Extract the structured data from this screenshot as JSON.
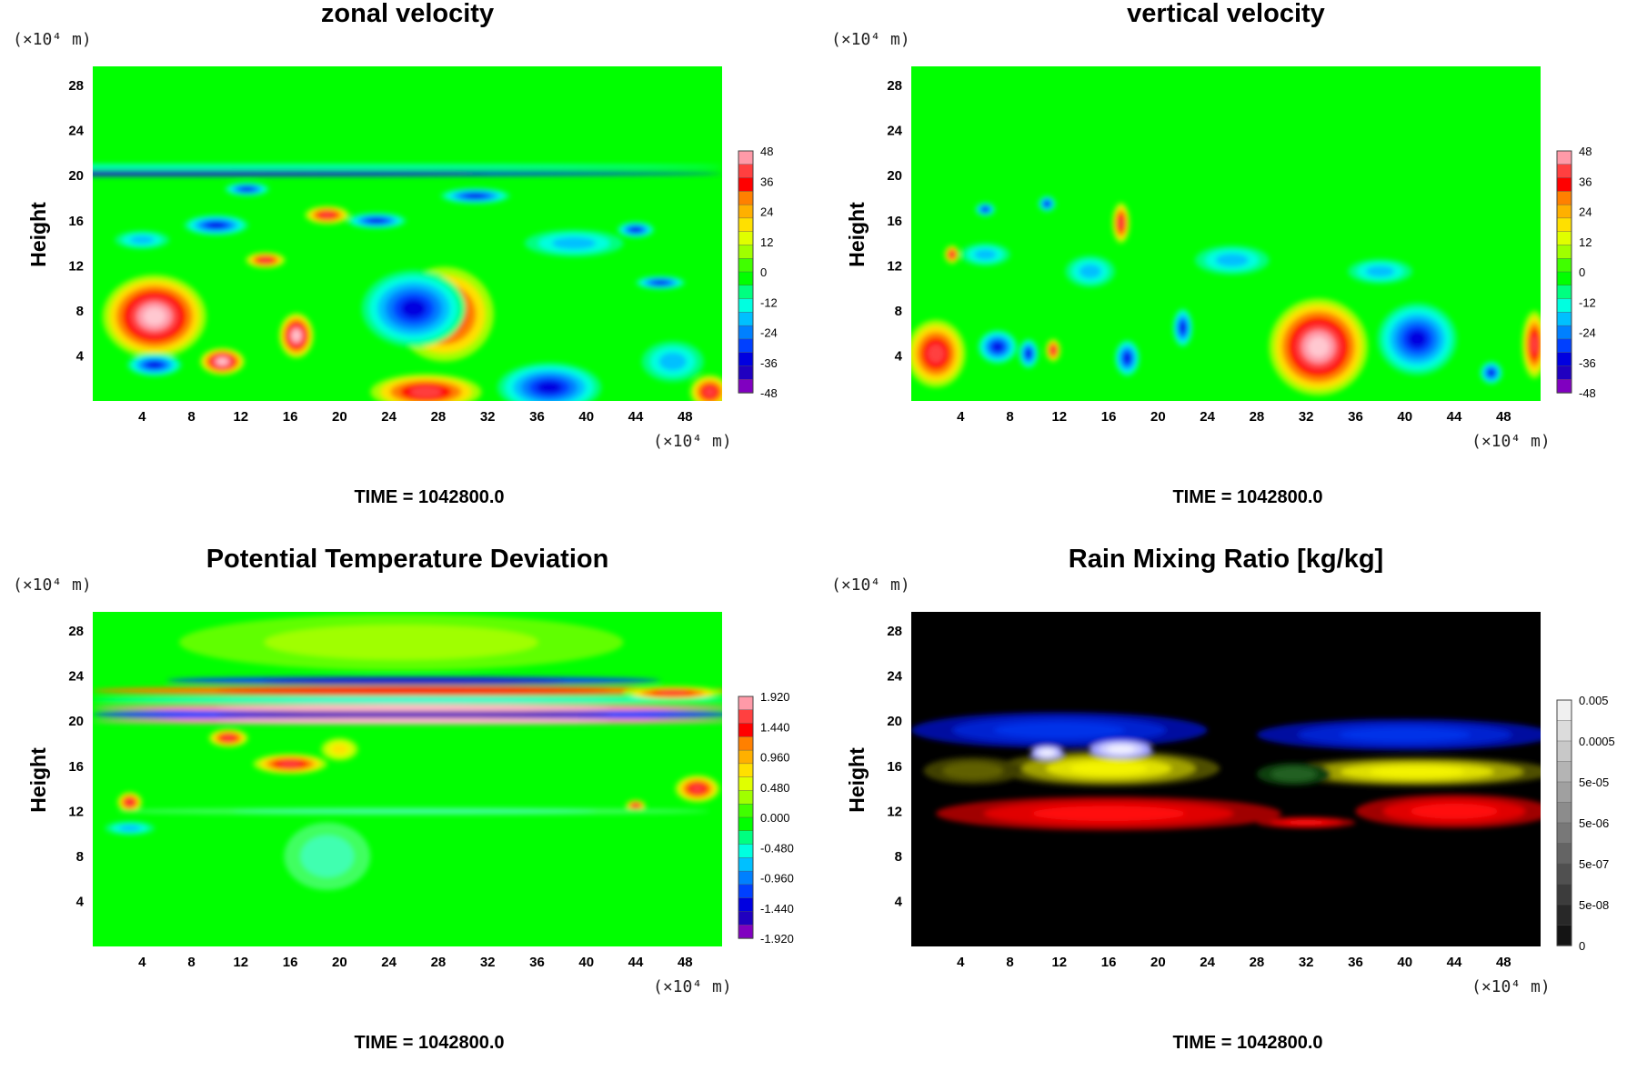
{
  "chart_data": [
    {
      "type": "heatmap",
      "title": "zonal velocity",
      "ylabel": "Height",
      "x_unit": "(×10⁴ m)",
      "y_unit": "(×10⁴ m)",
      "xticks": [
        "4",
        "8",
        "12",
        "16",
        "20",
        "24",
        "28",
        "32",
        "36",
        "40",
        "44",
        "48"
      ],
      "yticks": [
        "4",
        "8",
        "12",
        "16",
        "20",
        "24",
        "28"
      ],
      "xlim": [
        0,
        51
      ],
      "ylim": [
        0,
        29.7
      ],
      "colorbar": {
        "labels": [
          "48",
          "36",
          "24",
          "12",
          "0",
          "-12",
          "-24",
          "-36",
          "-48"
        ],
        "colors": [
          "#ff9aa8",
          "#ff4040",
          "#ff0000",
          "#ff8000",
          "#ffb000",
          "#ffe000",
          "#e0ff00",
          "#a0ff00",
          "#40ff00",
          "#00ff00",
          "#00ff80",
          "#00ffe0",
          "#00c0ff",
          "#0080ff",
          "#0040ff",
          "#0000e0",
          "#2000c0",
          "#8000c0"
        ]
      },
      "background": "#00ff00",
      "features": [
        {
          "x": 5,
          "y": 7.5,
          "rx": 4.2,
          "ry": 3.7,
          "kind": "peak"
        },
        {
          "x": 10.5,
          "y": 3.5,
          "rx": 1.8,
          "ry": 1.2,
          "kind": "peak"
        },
        {
          "x": 16.5,
          "y": 5.8,
          "rx": 1.4,
          "ry": 2.0,
          "kind": "peak"
        },
        {
          "x": 28.5,
          "y": 7.7,
          "rx": 4.0,
          "ry": 4.2,
          "kind": "pos"
        },
        {
          "x": 27,
          "y": 0.8,
          "rx": 4.5,
          "ry": 1.6,
          "kind": "pos"
        },
        {
          "x": 50,
          "y": 0.8,
          "rx": 1.6,
          "ry": 1.5,
          "kind": "pos"
        },
        {
          "x": 19,
          "y": 16.5,
          "rx": 1.8,
          "ry": 0.8,
          "kind": "pos"
        },
        {
          "x": 14,
          "y": 12.5,
          "rx": 1.6,
          "ry": 0.7,
          "kind": "pos"
        },
        {
          "x": 26,
          "y": 8.2,
          "rx": 4.2,
          "ry": 3.4,
          "kind": "neg"
        },
        {
          "x": 37,
          "y": 1.2,
          "rx": 4.2,
          "ry": 2.2,
          "kind": "neg"
        },
        {
          "x": 5,
          "y": 3.2,
          "rx": 2.2,
          "ry": 1.0,
          "kind": "neg"
        },
        {
          "x": 12.5,
          "y": 18.8,
          "rx": 1.8,
          "ry": 0.6,
          "kind": "neg"
        },
        {
          "x": 10,
          "y": 15.6,
          "rx": 2.6,
          "ry": 0.9,
          "kind": "neg"
        },
        {
          "x": 23,
          "y": 16,
          "rx": 2.4,
          "ry": 0.7,
          "kind": "neg"
        },
        {
          "x": 31,
          "y": 18.2,
          "rx": 2.8,
          "ry": 0.7,
          "kind": "neg"
        },
        {
          "x": 44,
          "y": 15.2,
          "rx": 1.5,
          "ry": 0.7,
          "kind": "neg"
        },
        {
          "x": 46,
          "y": 10.5,
          "rx": 2.0,
          "ry": 0.6,
          "kind": "neg"
        },
        {
          "x": 4,
          "y": 14.3,
          "rx": 2.2,
          "ry": 0.8,
          "kind": "cyan"
        },
        {
          "x": 39,
          "y": 14,
          "rx": 4.0,
          "ry": 1.2,
          "kind": "cyan"
        },
        {
          "x": 47,
          "y": 3.5,
          "rx": 2.5,
          "ry": 1.8,
          "kind": "cyan"
        },
        {
          "x": 2,
          "y": 20.2,
          "rx": 49,
          "ry": 0.25,
          "kind": "band_neg"
        },
        {
          "x": 2,
          "y": 20.8,
          "rx": 49,
          "ry": 0.2,
          "kind": "band_cyan"
        }
      ]
    },
    {
      "type": "heatmap",
      "title": "vertical velocity",
      "ylabel": "Height",
      "x_unit": "(×10⁴ m)",
      "y_unit": "(×10⁴ m)",
      "xticks": [
        "4",
        "8",
        "12",
        "16",
        "20",
        "24",
        "28",
        "32",
        "36",
        "40",
        "44",
        "48"
      ],
      "yticks": [
        "4",
        "8",
        "12",
        "16",
        "20",
        "24",
        "28"
      ],
      "xlim": [
        0,
        51
      ],
      "ylim": [
        0,
        29.7
      ],
      "colorbar": {
        "labels": [
          "48",
          "36",
          "24",
          "12",
          "0",
          "-12",
          "-24",
          "-36",
          "-48"
        ],
        "colors": [
          "#ff9aa8",
          "#ff4040",
          "#ff0000",
          "#ff8000",
          "#ffb000",
          "#ffe000",
          "#e0ff00",
          "#a0ff00",
          "#40ff00",
          "#00ff00",
          "#00ff80",
          "#00ffe0",
          "#00c0ff",
          "#0080ff",
          "#0040ff",
          "#0000e0",
          "#2000c0",
          "#8000c0"
        ]
      },
      "background": "#00ff00",
      "features": [
        {
          "x": 2,
          "y": 4.2,
          "rx": 2.4,
          "ry": 3.0,
          "kind": "pos"
        },
        {
          "x": 11.5,
          "y": 4.5,
          "rx": 0.6,
          "ry": 1.0,
          "kind": "pos"
        },
        {
          "x": 17,
          "y": 15.8,
          "rx": 0.7,
          "ry": 1.8,
          "kind": "pos"
        },
        {
          "x": 3.3,
          "y": 13,
          "rx": 0.6,
          "ry": 0.8,
          "kind": "pos"
        },
        {
          "x": 33,
          "y": 4.8,
          "rx": 4.0,
          "ry": 4.3,
          "kind": "peak"
        },
        {
          "x": 50.5,
          "y": 5.0,
          "rx": 1.0,
          "ry": 3.0,
          "kind": "pos"
        },
        {
          "x": 7,
          "y": 4.8,
          "rx": 1.6,
          "ry": 1.5,
          "kind": "neg"
        },
        {
          "x": 9.5,
          "y": 4.2,
          "rx": 0.8,
          "ry": 1.3,
          "kind": "neg"
        },
        {
          "x": 17.5,
          "y": 3.8,
          "rx": 1.0,
          "ry": 1.6,
          "kind": "neg"
        },
        {
          "x": 22,
          "y": 6.5,
          "rx": 0.8,
          "ry": 1.7,
          "kind": "neg"
        },
        {
          "x": 41,
          "y": 5.5,
          "rx": 3.2,
          "ry": 3.2,
          "kind": "neg"
        },
        {
          "x": 47,
          "y": 2.5,
          "rx": 0.9,
          "ry": 1.0,
          "kind": "neg"
        },
        {
          "x": 6,
          "y": 17,
          "rx": 0.8,
          "ry": 0.6,
          "kind": "neg"
        },
        {
          "x": 11,
          "y": 17.5,
          "rx": 0.7,
          "ry": 0.7,
          "kind": "neg"
        },
        {
          "x": 14.5,
          "y": 11.5,
          "rx": 2.0,
          "ry": 1.4,
          "kind": "cyan"
        },
        {
          "x": 26,
          "y": 12.5,
          "rx": 3.0,
          "ry": 1.3,
          "kind": "cyan"
        },
        {
          "x": 38,
          "y": 11.5,
          "rx": 2.6,
          "ry": 1.1,
          "kind": "cyan"
        },
        {
          "x": 6,
          "y": 13,
          "rx": 2.0,
          "ry": 1.0,
          "kind": "cyan"
        }
      ]
    },
    {
      "type": "heatmap",
      "title": "Potential Temperature Deviation",
      "ylabel": "Height",
      "x_unit": "(×10⁴ m)",
      "y_unit": "(×10⁴ m)",
      "xticks": [
        "4",
        "8",
        "12",
        "16",
        "20",
        "24",
        "28",
        "32",
        "36",
        "40",
        "44",
        "48"
      ],
      "yticks": [
        "4",
        "8",
        "12",
        "16",
        "20",
        "24",
        "28"
      ],
      "xlim": [
        0,
        51
      ],
      "ylim": [
        0,
        29.7
      ],
      "colorbar": {
        "labels": [
          "1.920",
          "1.440",
          "0.960",
          "0.480",
          "0.000",
          "-0.480",
          "-0.960",
          "-1.440",
          "-1.920"
        ],
        "colors": [
          "#ff9aa8",
          "#ff4040",
          "#ff0000",
          "#ff8000",
          "#ffb000",
          "#ffe000",
          "#e0ff00",
          "#a0ff00",
          "#40ff00",
          "#00ff00",
          "#00ff80",
          "#00ffe0",
          "#00c0ff",
          "#0080ff",
          "#0040ff",
          "#0000e0",
          "#2000c0",
          "#8000c0"
        ]
      },
      "background": "#00ff00",
      "features": [
        {
          "x": 25,
          "y": 27,
          "rx": 18,
          "ry": 2.5,
          "kind": "yellowgreen"
        },
        {
          "x": 26,
          "y": 20.6,
          "rx": 26,
          "ry": 0.55,
          "kind": "band_neg"
        },
        {
          "x": 26,
          "y": 21.2,
          "rx": 26,
          "ry": 0.35,
          "kind": "band_peak"
        },
        {
          "x": 26,
          "y": 20.0,
          "rx": 26,
          "ry": 0.3,
          "kind": "band_peak"
        },
        {
          "x": 26,
          "y": 21.9,
          "rx": 26,
          "ry": 0.3,
          "kind": "band_cyan"
        },
        {
          "x": 26,
          "y": 22.7,
          "rx": 26,
          "ry": 0.45,
          "kind": "band_pos"
        },
        {
          "x": 26,
          "y": 23.6,
          "rx": 20,
          "ry": 0.35,
          "kind": "band_neg"
        },
        {
          "x": 47,
          "y": 22.5,
          "rx": 4,
          "ry": 0.6,
          "kind": "pos"
        },
        {
          "x": 11,
          "y": 18.5,
          "rx": 1.6,
          "ry": 0.8,
          "kind": "pos"
        },
        {
          "x": 16,
          "y": 16.2,
          "rx": 3.0,
          "ry": 0.9,
          "kind": "pos"
        },
        {
          "x": 20,
          "y": 17.5,
          "rx": 1.5,
          "ry": 1.0,
          "kind": "yellow"
        },
        {
          "x": 3,
          "y": 12.8,
          "rx": 1.0,
          "ry": 0.9,
          "kind": "pos"
        },
        {
          "x": 49,
          "y": 14,
          "rx": 1.8,
          "ry": 1.2,
          "kind": "pos"
        },
        {
          "x": 44,
          "y": 12.5,
          "rx": 0.8,
          "ry": 0.5,
          "kind": "pos"
        },
        {
          "x": 3,
          "y": 10.5,
          "rx": 2.0,
          "ry": 0.6,
          "kind": "cyan"
        },
        {
          "x": 19,
          "y": 8.0,
          "rx": 3.5,
          "ry": 3.0,
          "kind": "lightcyan"
        },
        {
          "x": 26,
          "y": 12,
          "rx": 24,
          "ry": 0.3,
          "kind": "lightcyan"
        }
      ]
    },
    {
      "type": "heatmap",
      "title": "Rain Mixing Ratio [kg/kg]",
      "ylabel": "Height",
      "x_unit": "(×10⁴ m)",
      "y_unit": "(×10⁴ m)",
      "xticks": [
        "4",
        "8",
        "12",
        "16",
        "20",
        "24",
        "28",
        "32",
        "36",
        "40",
        "44",
        "48"
      ],
      "yticks": [
        "4",
        "8",
        "12",
        "16",
        "20",
        "24",
        "28"
      ],
      "xlim": [
        0,
        51
      ],
      "ylim": [
        0,
        29.7
      ],
      "colorbar": {
        "labels": [
          "0.005",
          "0.0005",
          "5e-05",
          "5e-06",
          "5e-07",
          "5e-08",
          "0"
        ],
        "colors": [
          "#f0f0f0",
          "#dcdcdc",
          "#c8c8c8",
          "#b4b4b4",
          "#a0a0a0",
          "#8c8c8c",
          "#787878",
          "#646464",
          "#505050",
          "#3c3c3c",
          "#282828",
          "#141414"
        ]
      },
      "background": "#000000",
      "features": [
        {
          "x": 12,
          "y": 19.2,
          "rx": 12,
          "ry": 1.6,
          "kind": "blue"
        },
        {
          "x": 40,
          "y": 18.8,
          "rx": 12,
          "ry": 1.4,
          "kind": "blue"
        },
        {
          "x": 16,
          "y": 15.8,
          "rx": 9,
          "ry": 1.6,
          "kind": "yellow"
        },
        {
          "x": 41,
          "y": 15.5,
          "rx": 11,
          "ry": 1.3,
          "kind": "yellow"
        },
        {
          "x": 5,
          "y": 15.6,
          "rx": 4,
          "ry": 1.2,
          "kind": "olive"
        },
        {
          "x": 31,
          "y": 15.3,
          "rx": 3,
          "ry": 1.0,
          "kind": "darkgreen"
        },
        {
          "x": 16,
          "y": 11.8,
          "rx": 14,
          "ry": 1.5,
          "kind": "red"
        },
        {
          "x": 32,
          "y": 11.0,
          "rx": 4,
          "ry": 0.5,
          "kind": "red"
        },
        {
          "x": 44,
          "y": 12.0,
          "rx": 8,
          "ry": 1.5,
          "kind": "red"
        },
        {
          "x": 17,
          "y": 17.5,
          "rx": 2.5,
          "ry": 0.8,
          "kind": "white"
        },
        {
          "x": 11,
          "y": 17.2,
          "rx": 1.3,
          "ry": 0.6,
          "kind": "white"
        }
      ]
    }
  ],
  "time_label": "TIME = 1042800.0"
}
